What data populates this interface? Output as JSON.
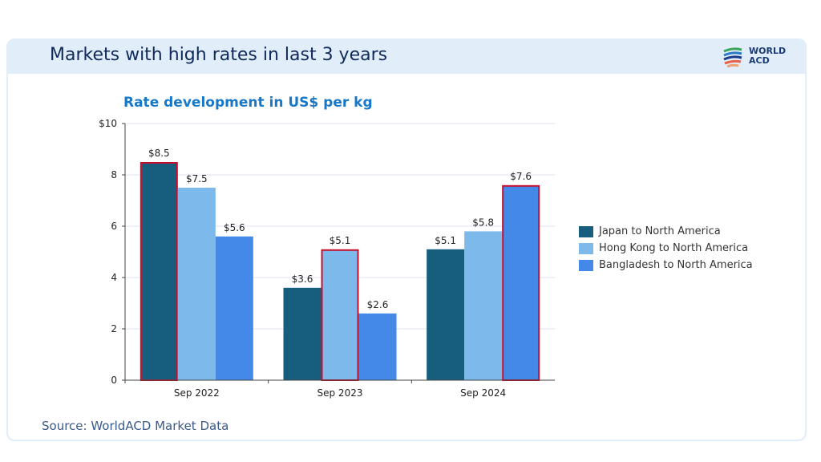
{
  "header": {
    "title": "Markets with high rates in last 3 years",
    "logo_text": "WORLD ACD"
  },
  "source": "Source: WorldACD Market Data",
  "chart_data": {
    "type": "bar",
    "title": "Rate development in US$ per kg",
    "categories": [
      "Sep 2022",
      "Sep 2023",
      "Sep 2024"
    ],
    "series": [
      {
        "name": "Japan to North America",
        "color": "#175e7e",
        "values": [
          8.5,
          3.6,
          5.1
        ],
        "labels": [
          "$8.5",
          "$3.6",
          "$5.1"
        ]
      },
      {
        "name": "Hong Kong to North America",
        "color": "#7db9ea",
        "values": [
          7.5,
          5.1,
          5.8
        ],
        "labels": [
          "$7.5",
          "$5.1",
          "$5.8"
        ]
      },
      {
        "name": "Bangladesh to North America",
        "color": "#4488e8",
        "values": [
          5.6,
          2.6,
          7.6
        ],
        "labels": [
          "$5.6",
          "$2.6",
          "$7.6"
        ]
      }
    ],
    "highlighted": [
      {
        "category": "Sep 2022",
        "series": "Japan to North America"
      },
      {
        "category": "Sep 2023",
        "series": "Hong Kong to North America"
      },
      {
        "category": "Sep 2024",
        "series": "Bangladesh to North America"
      }
    ],
    "highlight_color": "#c8102e",
    "ylim": [
      0,
      10
    ],
    "yticks": [
      0,
      2,
      4,
      6,
      8,
      10
    ],
    "ytick_labels": [
      "0",
      "2",
      "4",
      "6",
      "8",
      "$10"
    ],
    "grid": true,
    "legend": "right"
  }
}
